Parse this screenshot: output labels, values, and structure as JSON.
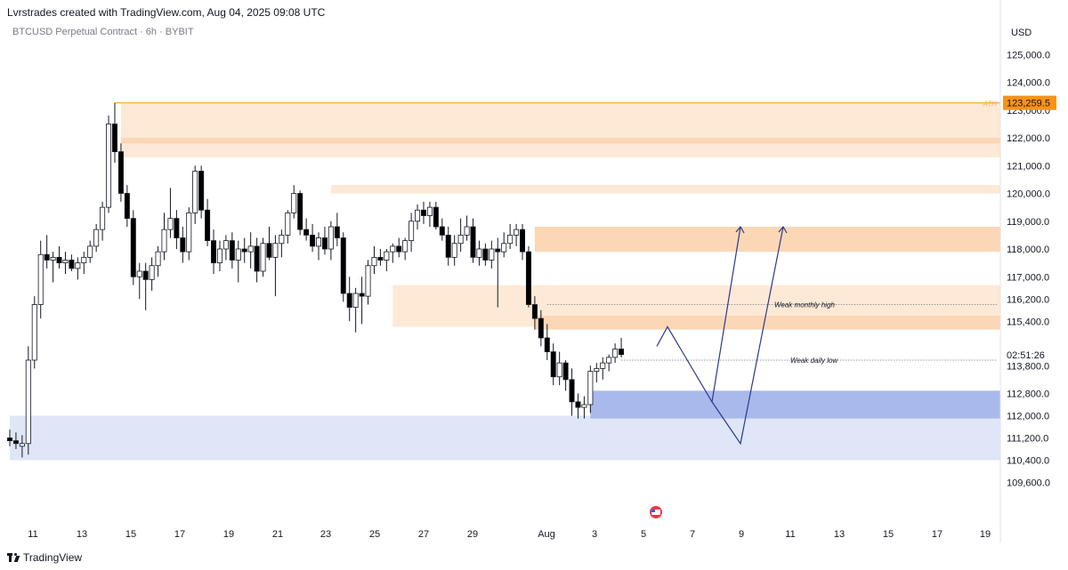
{
  "header": {
    "title": "Lvrstrades created with TradingView.com, Aug 04, 2025 09:08 UTC",
    "symbol": "BTCUSD Perpetual Contract · 6h · BYBIT",
    "currency": "USD"
  },
  "footer": {
    "brand": "TradingView"
  },
  "colors": {
    "up": "#ffffff",
    "down": "#000000",
    "wick": "#131722",
    "supply": "#fde9d6",
    "supply_strong": "#fbd7b5",
    "demand": "#dfe6f7",
    "demand_strong": "#aab9ec",
    "ath_line": "#f7b34a",
    "ath_label_bg": "#f7931a",
    "arrow": "#2a3a8c"
  },
  "chart_data": {
    "type": "candlestick",
    "title": "",
    "xlabel": "",
    "ylabel": "",
    "ylim": [
      109000,
      126000
    ],
    "x_tick_labels": [
      "11",
      "13",
      "15",
      "17",
      "19",
      "21",
      "23",
      "25",
      "27",
      "29",
      "Aug",
      "3",
      "5",
      "7",
      "9",
      "11",
      "13",
      "15",
      "17",
      "19"
    ],
    "y_tick_labels": [
      "125,000.0",
      "124,000.0",
      "123,000.0",
      "122,000.0",
      "121,000.0",
      "120,000.0",
      "119,000.0",
      "118,000.0",
      "117,000.0",
      "116,200.0",
      "115,400.0",
      "113,800.0",
      "112,800.0",
      "112,000.0",
      "111,200.0",
      "110,400.0",
      "109,600.0"
    ],
    "y_tick_values": [
      125000,
      124000,
      123000,
      122000,
      121000,
      120000,
      119000,
      118000,
      117000,
      116200,
      115400,
      113800,
      112800,
      112000,
      111200,
      110400,
      109600
    ],
    "price_labels": [
      {
        "text": "123,259.5",
        "value": 123259.5,
        "style": "ath"
      },
      {
        "text": "02:51:26",
        "value": 114200,
        "style": "countdown"
      }
    ],
    "candles": [
      {
        "o": 111200,
        "h": 111500,
        "l": 110900,
        "c": 111100
      },
      {
        "o": 111100,
        "h": 111400,
        "l": 110800,
        "c": 111000
      },
      {
        "o": 110900,
        "h": 111300,
        "l": 110500,
        "c": 111000
      },
      {
        "o": 111000,
        "h": 114500,
        "l": 110600,
        "c": 114000
      },
      {
        "o": 114000,
        "h": 116300,
        "l": 113700,
        "c": 116000
      },
      {
        "o": 116000,
        "h": 118300,
        "l": 115500,
        "c": 117800
      },
      {
        "o": 117800,
        "h": 118500,
        "l": 117300,
        "c": 117600
      },
      {
        "o": 117600,
        "h": 117900,
        "l": 116800,
        "c": 117700
      },
      {
        "o": 117700,
        "h": 118100,
        "l": 117300,
        "c": 117500
      },
      {
        "o": 117500,
        "h": 117900,
        "l": 117100,
        "c": 117600
      },
      {
        "o": 117600,
        "h": 117800,
        "l": 117200,
        "c": 117300
      },
      {
        "o": 117300,
        "h": 117700,
        "l": 116900,
        "c": 117500
      },
      {
        "o": 117500,
        "h": 117900,
        "l": 117100,
        "c": 117700
      },
      {
        "o": 117700,
        "h": 118300,
        "l": 117500,
        "c": 118100
      },
      {
        "o": 118100,
        "h": 118900,
        "l": 117900,
        "c": 118700
      },
      {
        "o": 118700,
        "h": 119700,
        "l": 118300,
        "c": 119500
      },
      {
        "o": 119500,
        "h": 122800,
        "l": 119300,
        "c": 122500
      },
      {
        "o": 122500,
        "h": 123259,
        "l": 121100,
        "c": 121500
      },
      {
        "o": 121500,
        "h": 121800,
        "l": 119700,
        "c": 120000
      },
      {
        "o": 120000,
        "h": 120300,
        "l": 118800,
        "c": 119100
      },
      {
        "o": 119100,
        "h": 119400,
        "l": 116700,
        "c": 117000
      },
      {
        "o": 117000,
        "h": 117500,
        "l": 116200,
        "c": 117200
      },
      {
        "o": 117200,
        "h": 117500,
        "l": 115800,
        "c": 116900
      },
      {
        "o": 116900,
        "h": 117700,
        "l": 116500,
        "c": 117400
      },
      {
        "o": 117400,
        "h": 118100,
        "l": 117000,
        "c": 117900
      },
      {
        "o": 117900,
        "h": 119300,
        "l": 117600,
        "c": 118700
      },
      {
        "o": 118700,
        "h": 120200,
        "l": 118400,
        "c": 119100
      },
      {
        "o": 119100,
        "h": 119400,
        "l": 118000,
        "c": 118400
      },
      {
        "o": 118400,
        "h": 118800,
        "l": 117500,
        "c": 117900
      },
      {
        "o": 117900,
        "h": 119500,
        "l": 117600,
        "c": 119300
      },
      {
        "o": 119300,
        "h": 121000,
        "l": 118900,
        "c": 120800
      },
      {
        "o": 120800,
        "h": 121000,
        "l": 119100,
        "c": 119400
      },
      {
        "o": 119400,
        "h": 119800,
        "l": 118100,
        "c": 118300
      },
      {
        "o": 118300,
        "h": 118700,
        "l": 117100,
        "c": 117500
      },
      {
        "o": 117500,
        "h": 118300,
        "l": 117200,
        "c": 118000
      },
      {
        "o": 118000,
        "h": 118500,
        "l": 117600,
        "c": 118300
      },
      {
        "o": 118300,
        "h": 118600,
        "l": 117300,
        "c": 117600
      },
      {
        "o": 117600,
        "h": 118300,
        "l": 116800,
        "c": 118000
      },
      {
        "o": 118000,
        "h": 118400,
        "l": 117500,
        "c": 117900
      },
      {
        "o": 117900,
        "h": 118600,
        "l": 117300,
        "c": 118100
      },
      {
        "o": 118100,
        "h": 118400,
        "l": 116800,
        "c": 117200
      },
      {
        "o": 117200,
        "h": 118400,
        "l": 117000,
        "c": 118200
      },
      {
        "o": 118200,
        "h": 118800,
        "l": 117600,
        "c": 117700
      },
      {
        "o": 117700,
        "h": 118500,
        "l": 116300,
        "c": 118200
      },
      {
        "o": 118200,
        "h": 118700,
        "l": 117700,
        "c": 118500
      },
      {
        "o": 118500,
        "h": 119400,
        "l": 118200,
        "c": 119300
      },
      {
        "o": 119300,
        "h": 120300,
        "l": 119100,
        "c": 120000
      },
      {
        "o": 120000,
        "h": 120100,
        "l": 118500,
        "c": 118700
      },
      {
        "o": 118700,
        "h": 119100,
        "l": 118300,
        "c": 118500
      },
      {
        "o": 118500,
        "h": 118900,
        "l": 117900,
        "c": 118100
      },
      {
        "o": 118100,
        "h": 118600,
        "l": 117600,
        "c": 118400
      },
      {
        "o": 118400,
        "h": 118800,
        "l": 117800,
        "c": 118000
      },
      {
        "o": 118000,
        "h": 119000,
        "l": 117600,
        "c": 118800
      },
      {
        "o": 118800,
        "h": 119300,
        "l": 118100,
        "c": 118400
      },
      {
        "o": 118400,
        "h": 118600,
        "l": 116100,
        "c": 116400
      },
      {
        "o": 116400,
        "h": 117000,
        "l": 115400,
        "c": 115900
      },
      {
        "o": 115900,
        "h": 116600,
        "l": 115000,
        "c": 116400
      },
      {
        "o": 116400,
        "h": 117000,
        "l": 115300,
        "c": 116300
      },
      {
        "o": 116300,
        "h": 117600,
        "l": 116000,
        "c": 117400
      },
      {
        "o": 117400,
        "h": 118100,
        "l": 117100,
        "c": 117700
      },
      {
        "o": 117700,
        "h": 118000,
        "l": 117400,
        "c": 117600
      },
      {
        "o": 117600,
        "h": 118000,
        "l": 117200,
        "c": 117900
      },
      {
        "o": 117900,
        "h": 118200,
        "l": 117500,
        "c": 118100
      },
      {
        "o": 118100,
        "h": 118400,
        "l": 117700,
        "c": 117900
      },
      {
        "o": 117900,
        "h": 118400,
        "l": 117600,
        "c": 118300
      },
      {
        "o": 118300,
        "h": 119300,
        "l": 117900,
        "c": 119000
      },
      {
        "o": 119000,
        "h": 119600,
        "l": 118700,
        "c": 119400
      },
      {
        "o": 119400,
        "h": 119700,
        "l": 118900,
        "c": 119200
      },
      {
        "o": 119200,
        "h": 119700,
        "l": 118800,
        "c": 119500
      },
      {
        "o": 119500,
        "h": 119700,
        "l": 118700,
        "c": 118800
      },
      {
        "o": 118800,
        "h": 119100,
        "l": 118300,
        "c": 118500
      },
      {
        "o": 118500,
        "h": 118800,
        "l": 117400,
        "c": 117700
      },
      {
        "o": 117700,
        "h": 118500,
        "l": 117400,
        "c": 118200
      },
      {
        "o": 118200,
        "h": 119100,
        "l": 117900,
        "c": 118500
      },
      {
        "o": 118500,
        "h": 119200,
        "l": 118300,
        "c": 118800
      },
      {
        "o": 118800,
        "h": 119100,
        "l": 117500,
        "c": 117700
      },
      {
        "o": 117700,
        "h": 118300,
        "l": 117400,
        "c": 118000
      },
      {
        "o": 118000,
        "h": 118200,
        "l": 117400,
        "c": 117600
      },
      {
        "o": 117600,
        "h": 118300,
        "l": 117300,
        "c": 118000
      },
      {
        "o": 118000,
        "h": 118400,
        "l": 115900,
        "c": 117900
      },
      {
        "o": 117900,
        "h": 118600,
        "l": 117700,
        "c": 118200
      },
      {
        "o": 118200,
        "h": 118900,
        "l": 118000,
        "c": 118500
      },
      {
        "o": 118500,
        "h": 118900,
        "l": 118100,
        "c": 118700
      },
      {
        "o": 118700,
        "h": 118900,
        "l": 117600,
        "c": 117900
      },
      {
        "o": 117900,
        "h": 118100,
        "l": 115900,
        "c": 116000
      },
      {
        "o": 116000,
        "h": 116300,
        "l": 115100,
        "c": 115500
      },
      {
        "o": 115500,
        "h": 115800,
        "l": 114500,
        "c": 114800
      },
      {
        "o": 114800,
        "h": 115300,
        "l": 114000,
        "c": 114300
      },
      {
        "o": 114300,
        "h": 114600,
        "l": 113100,
        "c": 113400
      },
      {
        "o": 113400,
        "h": 114300,
        "l": 113100,
        "c": 113900
      },
      {
        "o": 113900,
        "h": 114000,
        "l": 112900,
        "c": 113300
      },
      {
        "o": 113300,
        "h": 113700,
        "l": 112000,
        "c": 112500
      },
      {
        "o": 112500,
        "h": 112800,
        "l": 111900,
        "c": 112300
      },
      {
        "o": 112300,
        "h": 112700,
        "l": 111900,
        "c": 112400
      },
      {
        "o": 112400,
        "h": 113800,
        "l": 112100,
        "c": 113600
      },
      {
        "o": 113600,
        "h": 113900,
        "l": 113200,
        "c": 113700
      },
      {
        "o": 113700,
        "h": 114100,
        "l": 113300,
        "c": 113900
      },
      {
        "o": 113900,
        "h": 114200,
        "l": 113600,
        "c": 114100
      },
      {
        "o": 114100,
        "h": 114600,
        "l": 113900,
        "c": 114400
      },
      {
        "o": 114400,
        "h": 114800,
        "l": 114100,
        "c": 114200
      }
    ],
    "zones": [
      {
        "kind": "supply",
        "y0": 121300,
        "y1": 123259
      },
      {
        "kind": "supply_strong",
        "y0": 121800,
        "y1": 122000
      },
      {
        "kind": "supply",
        "y0": 120000,
        "y1": 120300
      },
      {
        "kind": "supply_strong",
        "y0": 117900,
        "y1": 118800
      },
      {
        "kind": "supply",
        "y0": 115200,
        "y1": 116700
      },
      {
        "kind": "supply_strong",
        "y0": 115100,
        "y1": 115600
      },
      {
        "kind": "demand",
        "y0": 110400,
        "y1": 112000
      },
      {
        "kind": "demand",
        "y0": 110400,
        "y1": 111000
      },
      {
        "kind": "demand_strong",
        "y0": 111900,
        "y1": 112900
      }
    ],
    "lines": [
      {
        "label": "ATH",
        "value": 123259.5,
        "style": "ath"
      },
      {
        "label": "Weak monthly high",
        "value": 116000,
        "style": "dotted"
      },
      {
        "label": "Weak daily low",
        "value": 114000,
        "style": "dotted"
      }
    ],
    "projection": [
      114500,
      115200,
      112500,
      111000,
      118800
    ],
    "grid": false,
    "legend": "none"
  }
}
